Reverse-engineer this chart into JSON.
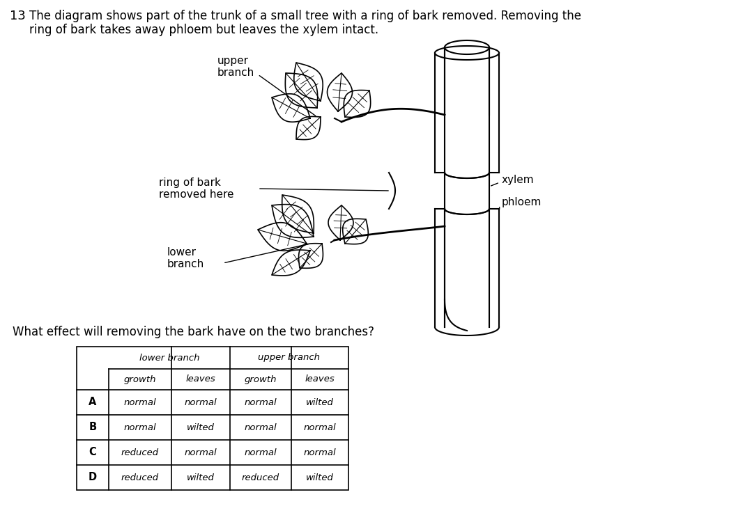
{
  "question_number": "13",
  "question_text_line1": "The diagram shows part of the trunk of a small tree with a ring of bark removed. Removing the",
  "question_text_line2": "ring of bark takes away phloem but leaves the xylem intact.",
  "sub_question": "What effect will removing the bark have on the two branches?",
  "table": {
    "row_labels": [
      "A",
      "B",
      "C",
      "D"
    ],
    "data": [
      [
        "normal",
        "normal",
        "normal",
        "wilted"
      ],
      [
        "normal",
        "wilted",
        "normal",
        "normal"
      ],
      [
        "reduced",
        "normal",
        "normal",
        "normal"
      ],
      [
        "reduced",
        "wilted",
        "reduced",
        "wilted"
      ]
    ]
  },
  "bg_color": "#ffffff",
  "text_color": "#000000"
}
